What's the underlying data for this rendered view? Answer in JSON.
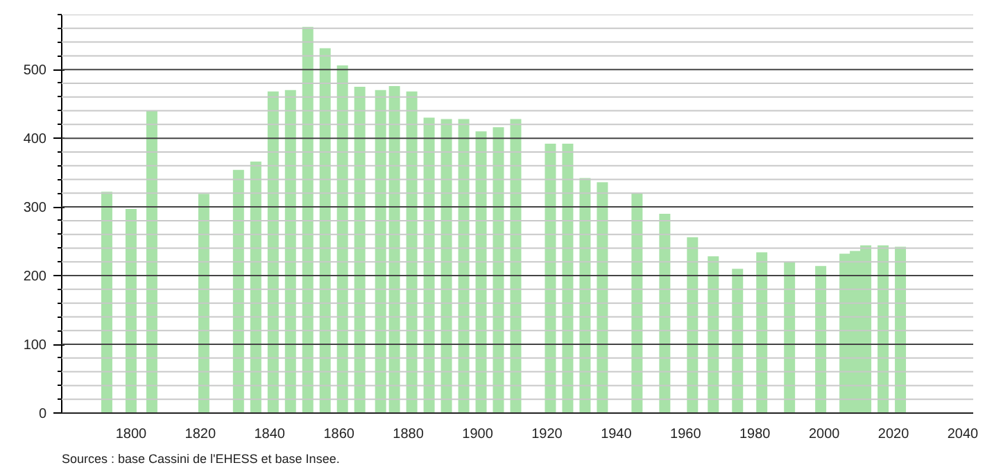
{
  "chart_data": {
    "type": "bar",
    "x": [
      1793,
      1800,
      1806,
      1821,
      1831,
      1836,
      1841,
      1846,
      1851,
      1856,
      1861,
      1866,
      1872,
      1876,
      1881,
      1886,
      1891,
      1896,
      1901,
      1906,
      1911,
      1921,
      1926,
      1931,
      1936,
      1946,
      1954,
      1962,
      1968,
      1975,
      1982,
      1990,
      1999,
      2006,
      2009,
      2012,
      2017,
      2022
    ],
    "values": [
      322,
      297,
      440,
      319,
      354,
      366,
      468,
      470,
      562,
      531,
      506,
      475,
      470,
      476,
      468,
      430,
      428,
      428,
      410,
      416,
      428,
      392,
      392,
      342,
      336,
      320,
      290,
      256,
      228,
      210,
      234,
      220,
      214,
      232,
      236,
      244,
      244,
      242
    ],
    "color": "#a8e2a8",
    "xlim": [
      1780,
      2043
    ],
    "xticks": [
      1800,
      1820,
      1840,
      1860,
      1880,
      1900,
      1920,
      1940,
      1960,
      1980,
      2000,
      2020,
      2040
    ],
    "ylim": [
      0,
      580
    ],
    "yticks": [
      0,
      {
        "value": 20,
        "label": null
      },
      {
        "value": 40,
        "label": null
      },
      {
        "value": 60,
        "label": null
      },
      {
        "value": 80,
        "label": null
      },
      100,
      {
        "value": 120,
        "label": null
      },
      {
        "value": 140,
        "label": null
      },
      {
        "value": 160,
        "label": null
      },
      {
        "value": 180,
        "label": null
      },
      200,
      {
        "value": 220,
        "label": null
      },
      {
        "value": 240,
        "label": null
      },
      {
        "value": 260,
        "label": null
      },
      {
        "value": 280,
        "label": null
      },
      300,
      {
        "value": 320,
        "label": null
      },
      {
        "value": 340,
        "label": null
      },
      {
        "value": 360,
        "label": null
      },
      {
        "value": 380,
        "label": null
      },
      400,
      {
        "value": 420,
        "label": null
      },
      {
        "value": 440,
        "label": null
      },
      {
        "value": 460,
        "label": null
      },
      {
        "value": 480,
        "label": null
      },
      500,
      {
        "value": 520,
        "label": null
      },
      {
        "value": 540,
        "label": null
      },
      {
        "value": 560,
        "label": null
      },
      {
        "value": 580,
        "label": null
      }
    ],
    "grid": "y",
    "annotations": [
      "Sources : base Cassini de l'EHESS et base Insee."
    ]
  }
}
